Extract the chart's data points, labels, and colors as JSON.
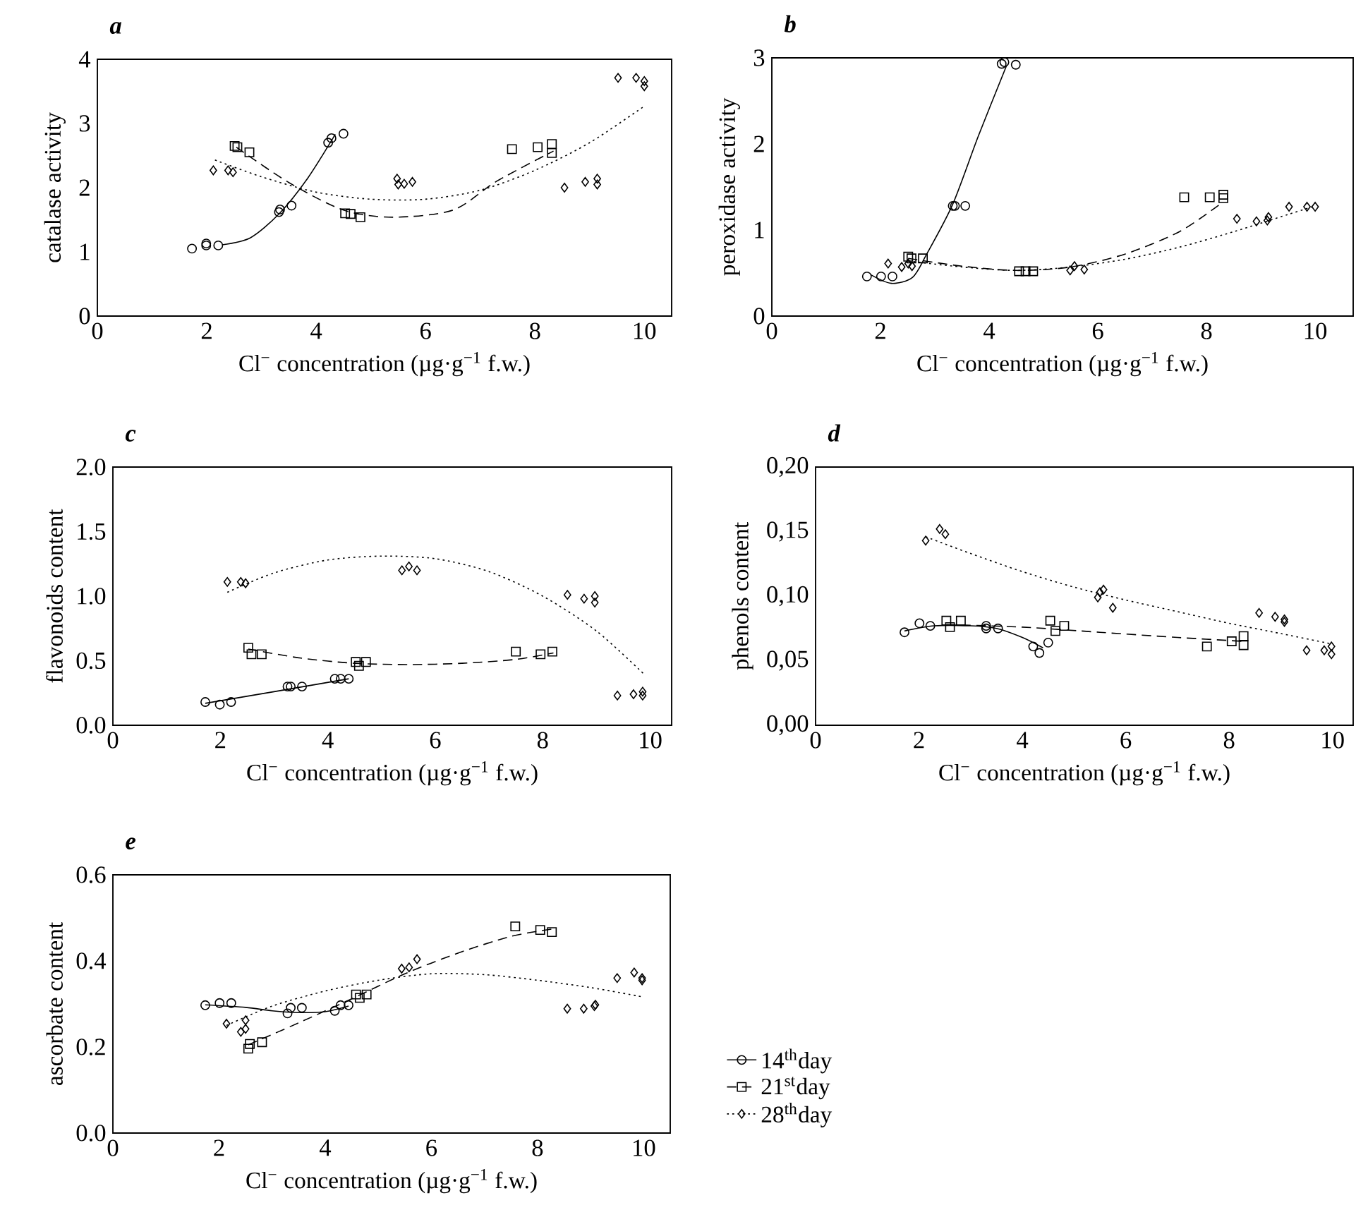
{
  "chart_data": [
    {
      "type": "scatter",
      "title": "a",
      "xlabel": "Cl$^{−}$ concentration (µg·g$^{−1}$ f.w.)",
      "ylabel": "catalase activity",
      "xlim": [
        0,
        10.5
      ],
      "xticks": [
        0,
        2,
        4,
        6,
        8,
        10
      ],
      "ylim": [
        0,
        4
      ],
      "yticks": [
        0,
        1,
        2,
        3,
        4
      ],
      "series": [
        {
          "type": "scatter",
          "marker": "circle",
          "color": "#000000",
          "x": [
            1.73,
            1.99,
            1.99,
            2.21,
            3.32,
            3.34,
            3.55,
            4.22,
            4.28,
            4.5
          ],
          "values": [
            1.05,
            1.13,
            1.1,
            1.1,
            1.62,
            1.66,
            1.72,
            2.7,
            2.77,
            2.84
          ]
        },
        {
          "type": "scatter",
          "marker": "square",
          "color": "#000000",
          "x": [
            2.51,
            2.56,
            2.78,
            4.53,
            4.63,
            4.81,
            7.58,
            8.05,
            8.31,
            8.31
          ],
          "values": [
            2.65,
            2.63,
            2.55,
            1.6,
            1.59,
            1.54,
            2.6,
            2.63,
            2.68,
            2.54
          ]
        },
        {
          "type": "scatter",
          "marker": "diamond",
          "color": "#000000",
          "x": [
            2.12,
            2.39,
            2.48,
            5.48,
            5.5,
            5.61,
            5.76,
            8.54,
            8.92,
            9.14,
            9.14,
            9.52,
            9.85,
            10.0,
            10.0
          ],
          "values": [
            2.27,
            2.27,
            2.24,
            2.14,
            2.05,
            2.06,
            2.09,
            2.0,
            2.09,
            2.14,
            2.05,
            3.71,
            3.71,
            3.66,
            3.58
          ]
        },
        {
          "type": "line",
          "marker": "none",
          "line_style": "solid",
          "color": "#000000",
          "x": [
            2.28,
            2.8,
            3.32,
            3.84,
            4.35
          ],
          "values": [
            1.11,
            1.22,
            1.59,
            2.14,
            2.83
          ]
        },
        {
          "type": "line",
          "marker": "none",
          "line_style": "dashed",
          "color": "#000000",
          "x": [
            2.54,
            3.5,
            4.5,
            5.4,
            6.5,
            7.3,
            8.34
          ],
          "values": [
            2.63,
            2.08,
            1.65,
            1.54,
            1.65,
            2.1,
            2.57
          ]
        },
        {
          "type": "line",
          "marker": "none",
          "line_style": "dotted",
          "color": "#000000",
          "x": [
            2.15,
            3.0,
            4.0,
            5.0,
            6.0,
            7.0,
            8.0,
            9.0,
            10.0
          ],
          "values": [
            2.43,
            2.17,
            1.93,
            1.82,
            1.82,
            1.96,
            2.27,
            2.7,
            3.27
          ]
        }
      ]
    },
    {
      "type": "scatter",
      "title": "b",
      "xlabel": "Cl$^{−}$ concentration (µg·g$^{−1}$ f.w.)",
      "ylabel": "peroxidase activity",
      "xlim": [
        0,
        10.7
      ],
      "xticks": [
        0,
        2,
        4,
        6,
        8,
        10
      ],
      "ylim": [
        0,
        3
      ],
      "yticks": [
        0,
        1,
        2,
        3
      ],
      "series": [
        {
          "type": "scatter",
          "marker": "circle",
          "color": "#000000",
          "x": [
            1.75,
            2.01,
            2.22,
            3.33,
            3.37,
            3.56,
            4.23,
            4.28,
            4.49
          ],
          "values": [
            0.46,
            0.46,
            0.46,
            1.28,
            1.28,
            1.28,
            2.93,
            2.95,
            2.92
          ]
        },
        {
          "type": "scatter",
          "marker": "square",
          "color": "#000000",
          "x": [
            2.51,
            2.57,
            2.78,
            4.55,
            4.67,
            4.81,
            7.59,
            8.06,
            8.31,
            8.31
          ],
          "values": [
            0.69,
            0.67,
            0.67,
            0.52,
            0.52,
            0.52,
            1.38,
            1.38,
            1.41,
            1.37
          ]
        },
        {
          "type": "scatter",
          "marker": "diamond",
          "color": "#000000",
          "x": [
            2.14,
            2.39,
            2.51,
            2.58,
            5.49,
            5.57,
            5.75,
            8.56,
            8.92,
            9.12,
            9.14,
            9.52,
            9.85,
            10.0
          ],
          "values": [
            0.61,
            0.57,
            0.61,
            0.58,
            0.53,
            0.58,
            0.54,
            1.13,
            1.1,
            1.11,
            1.15,
            1.27,
            1.27,
            1.27
          ]
        },
        {
          "type": "line",
          "marker": "none",
          "line_style": "solid",
          "color": "#000000",
          "x": [
            1.82,
            2.2,
            2.59,
            2.85,
            3.33,
            3.8,
            4.32
          ],
          "values": [
            0.48,
            0.38,
            0.45,
            0.72,
            1.3,
            2.09,
            2.91
          ]
        },
        {
          "type": "line",
          "marker": "none",
          "line_style": "dashed",
          "color": "#000000",
          "x": [
            2.51,
            3.5,
            4.5,
            5.5,
            6.5,
            7.5,
            8.25
          ],
          "values": [
            0.67,
            0.58,
            0.53,
            0.57,
            0.72,
            0.98,
            1.3
          ]
        },
        {
          "type": "line",
          "marker": "none",
          "line_style": "dotted",
          "color": "#000000",
          "x": [
            2.51,
            3.5,
            4.5,
            5.5,
            6.5,
            7.5,
            8.5,
            9.5,
            10.0
          ],
          "values": [
            0.64,
            0.57,
            0.53,
            0.57,
            0.66,
            0.8,
            0.98,
            1.18,
            1.28
          ]
        }
      ]
    },
    {
      "type": "scatter",
      "title": "c",
      "xlabel": "Cl$^{−}$ concentration (µg·g$^{−1}$ f.w.)",
      "ylabel": "flavonoids content",
      "xlim": [
        0,
        10.4
      ],
      "xticks": [
        0,
        2,
        4,
        6,
        8,
        10
      ],
      "ylim": [
        0,
        2
      ],
      "yticks": [
        {
          "value": 0,
          "label": "0.0"
        },
        {
          "value": 0.5,
          "label": "0.5"
        },
        {
          "value": 1,
          "label": "1.0"
        },
        {
          "value": 1.5,
          "label": "1.5"
        },
        {
          "value": 2,
          "label": "2.0"
        }
      ],
      "series": [
        {
          "type": "scatter",
          "marker": "circle",
          "color": "#000000",
          "x": [
            1.72,
            1.99,
            2.2,
            3.25,
            3.31,
            3.52,
            4.13,
            4.24,
            4.39
          ],
          "values": [
            0.18,
            0.16,
            0.18,
            0.3,
            0.3,
            0.3,
            0.36,
            0.36,
            0.36
          ]
        },
        {
          "type": "scatter",
          "marker": "square",
          "color": "#000000",
          "x": [
            2.52,
            2.58,
            2.77,
            4.52,
            4.58,
            4.71,
            7.5,
            7.96,
            8.18
          ],
          "values": [
            0.6,
            0.55,
            0.55,
            0.49,
            0.46,
            0.49,
            0.57,
            0.55,
            0.57
          ]
        },
        {
          "type": "scatter",
          "marker": "diamond",
          "color": "#000000",
          "x": [
            2.13,
            2.38,
            2.47,
            5.38,
            5.51,
            5.66,
            8.46,
            8.77,
            8.97,
            8.97,
            9.39,
            9.69,
            9.86,
            9.86
          ],
          "values": [
            1.11,
            1.11,
            1.1,
            1.2,
            1.23,
            1.2,
            1.01,
            0.98,
            1.0,
            0.95,
            0.23,
            0.24,
            0.26,
            0.23
          ]
        },
        {
          "type": "line",
          "marker": "none",
          "line_style": "solid",
          "color": "#000000",
          "x": [
            1.72,
            3.0,
            4.39
          ],
          "values": [
            0.17,
            0.26,
            0.36
          ]
        },
        {
          "type": "line",
          "marker": "none",
          "line_style": "dashed",
          "color": "#000000",
          "x": [
            2.52,
            3.5,
            4.5,
            5.5,
            6.5,
            7.5,
            8.2
          ],
          "values": [
            0.59,
            0.52,
            0.48,
            0.47,
            0.48,
            0.51,
            0.56
          ]
        },
        {
          "type": "line",
          "marker": "none",
          "line_style": "dotted",
          "color": "#000000",
          "x": [
            2.13,
            3.0,
            4.0,
            5.0,
            6.0,
            7.0,
            8.0,
            9.0,
            9.9
          ],
          "values": [
            1.03,
            1.18,
            1.28,
            1.31,
            1.29,
            1.19,
            1.0,
            0.73,
            0.39
          ]
        }
      ]
    },
    {
      "type": "scatter",
      "title": "d",
      "xlabel": "Cl$^{−}$ concentration (µg·g$^{−1}$ f.w.)",
      "ylabel": "phenols content",
      "xlim": [
        0,
        10.4
      ],
      "xticks": [
        0,
        2,
        4,
        6,
        8,
        10
      ],
      "ylim": [
        0,
        0.2
      ],
      "yticks": [
        {
          "value": 0,
          "label": "0,00"
        },
        {
          "value": 0.05,
          "label": "0,05"
        },
        {
          "value": 0.1,
          "label": "0,10"
        },
        {
          "value": 0.15,
          "label": "0,15"
        },
        {
          "value": 0.2,
          "label": "0,20"
        }
      ],
      "series": [
        {
          "type": "scatter",
          "marker": "circle",
          "color": "#000000",
          "x": [
            1.72,
            2.01,
            2.22,
            3.3,
            3.3,
            3.53,
            4.21,
            4.33,
            4.5
          ],
          "values": [
            0.072,
            0.079,
            0.077,
            0.077,
            0.075,
            0.075,
            0.061,
            0.056,
            0.064
          ]
        },
        {
          "type": "scatter",
          "marker": "square",
          "color": "#000000",
          "x": [
            2.53,
            2.6,
            2.81,
            4.54,
            4.64,
            4.81,
            7.57,
            8.05,
            8.28,
            8.28
          ],
          "values": [
            0.081,
            0.076,
            0.081,
            0.081,
            0.073,
            0.077,
            0.061,
            0.065,
            0.069,
            0.062
          ]
        },
        {
          "type": "scatter",
          "marker": "diamond",
          "color": "#000000",
          "x": [
            2.13,
            2.4,
            2.51,
            5.46,
            5.5,
            5.57,
            5.75,
            8.58,
            8.89,
            9.07,
            9.07,
            9.5,
            9.84,
            9.98,
            9.98
          ],
          "values": [
            0.143,
            0.152,
            0.148,
            0.099,
            0.103,
            0.105,
            0.091,
            0.087,
            0.084,
            0.082,
            0.08,
            0.058,
            0.058,
            0.061,
            0.055
          ]
        },
        {
          "type": "line",
          "marker": "none",
          "line_style": "solid",
          "color": "#000000",
          "x": [
            1.72,
            2.3,
            3.0,
            3.5,
            4.0,
            4.4
          ],
          "values": [
            0.073,
            0.077,
            0.077,
            0.075,
            0.068,
            0.06
          ]
        },
        {
          "type": "line",
          "marker": "none",
          "line_style": "dashed",
          "color": "#000000",
          "x": [
            2.53,
            4.0,
            5.5,
            7.0,
            8.28
          ],
          "values": [
            0.078,
            0.076,
            0.072,
            0.068,
            0.065
          ]
        },
        {
          "type": "line",
          "marker": "none",
          "line_style": "dotted",
          "color": "#000000",
          "x": [
            2.13,
            3.0,
            4.0,
            5.0,
            6.0,
            7.0,
            8.0,
            9.0,
            9.98
          ],
          "values": [
            0.146,
            0.133,
            0.119,
            0.107,
            0.097,
            0.088,
            0.079,
            0.071,
            0.063
          ]
        }
      ]
    },
    {
      "type": "scatter",
      "title": "e",
      "xlabel": "Cl$^{−}$ concentration (µg·g$^{−1}$ f.w.)",
      "ylabel": "ascorbate content",
      "xlim": [
        0,
        10.5
      ],
      "xticks": [
        0,
        2,
        4,
        6,
        8,
        10
      ],
      "ylim": [
        0,
        0.6
      ],
      "yticks": [
        {
          "value": 0,
          "label": "0.0"
        },
        {
          "value": 0.2,
          "label": "0.2"
        },
        {
          "value": 0.4,
          "label": "0.4"
        },
        {
          "value": 0.6,
          "label": "0.6"
        }
      ],
      "legend": "right",
      "series": [
        {
          "type": "scatter",
          "marker": "circle",
          "color": "#000000",
          "name": "14$^{th}$day",
          "line_style": "solid",
          "x": [
            1.74,
            2.01,
            2.23,
            3.29,
            3.35,
            3.56,
            4.18,
            4.29,
            4.44
          ],
          "values": [
            0.297,
            0.302,
            0.302,
            0.278,
            0.291,
            0.291,
            0.284,
            0.297,
            0.297
          ]
        },
        {
          "type": "scatter",
          "marker": "square",
          "color": "#000000",
          "name": "21$^{st}$day",
          "line_style": "dashed",
          "x": [
            2.55,
            2.58,
            2.81,
            4.58,
            4.65,
            4.78,
            7.58,
            8.05,
            8.27
          ],
          "values": [
            0.196,
            0.207,
            0.211,
            0.322,
            0.314,
            0.322,
            0.48,
            0.472,
            0.467
          ]
        },
        {
          "type": "scatter",
          "marker": "diamond",
          "color": "#000000",
          "name": "28$^{th}$day",
          "line_style": "dotted",
          "x": [
            2.14,
            2.41,
            2.5,
            2.5,
            5.44,
            5.58,
            5.73,
            8.56,
            8.87,
            9.07,
            9.09,
            9.5,
            9.82,
            9.97,
            9.97
          ],
          "values": [
            0.254,
            0.235,
            0.262,
            0.242,
            0.382,
            0.385,
            0.404,
            0.289,
            0.289,
            0.295,
            0.298,
            0.36,
            0.373,
            0.36,
            0.355
          ]
        },
        {
          "type": "line",
          "marker": "none",
          "line_style": "solid",
          "color": "#000000",
          "x": [
            1.74,
            2.5,
            3.0,
            3.5,
            4.0,
            4.44
          ],
          "values": [
            0.298,
            0.292,
            0.284,
            0.28,
            0.282,
            0.295
          ]
        },
        {
          "type": "line",
          "marker": "none",
          "line_style": "dashed",
          "color": "#000000",
          "x": [
            2.55,
            3.5,
            4.5,
            5.5,
            6.5,
            7.5,
            8.27
          ],
          "values": [
            0.205,
            0.256,
            0.312,
            0.37,
            0.418,
            0.457,
            0.474
          ]
        },
        {
          "type": "line",
          "marker": "none",
          "line_style": "dotted",
          "color": "#000000",
          "x": [
            2.14,
            3.0,
            4.0,
            5.0,
            6.0,
            7.0,
            8.0,
            9.0,
            10.0
          ],
          "values": [
            0.25,
            0.295,
            0.33,
            0.355,
            0.37,
            0.368,
            0.355,
            0.338,
            0.316
          ]
        }
      ]
    }
  ]
}
